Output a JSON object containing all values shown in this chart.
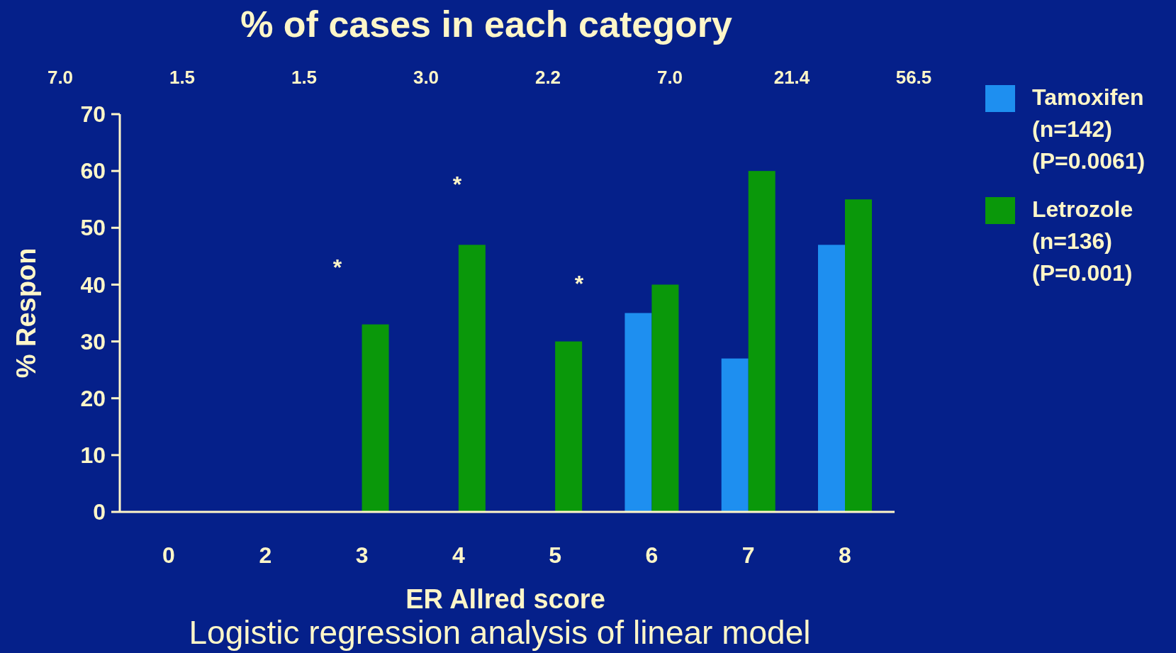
{
  "chart_data": {
    "type": "bar",
    "title": "% of cases in each category",
    "xlabel": "ER Allred score",
    "ylabel": "% Respon",
    "categories": [
      "0",
      "2",
      "3",
      "4",
      "5",
      "6",
      "7",
      "8"
    ],
    "series": [
      {
        "name": "Tamoxifen\n(n=142)\n(P=0.0061)",
        "color": "#1e8ff0",
        "values": [
          0,
          0,
          0,
          0,
          0,
          35,
          27,
          47
        ]
      },
      {
        "name": "Letrozole\n(n=136)\n(P=0.001)",
        "color": "#0a980a",
        "values": [
          0,
          0,
          33,
          47,
          30,
          40,
          60,
          55
        ]
      }
    ],
    "ylim": [
      0,
      70
    ],
    "yticks": [
      0,
      10,
      20,
      30,
      40,
      50,
      60,
      70
    ],
    "grid": false,
    "legend": "right",
    "annotations": [
      "7.0",
      "1.5",
      "1.5",
      "3.0",
      "2.2",
      "7.0",
      "21.4",
      "56.5",
      "*",
      "*",
      "*",
      "Logistic regression analysis of linear model"
    ]
  }
}
